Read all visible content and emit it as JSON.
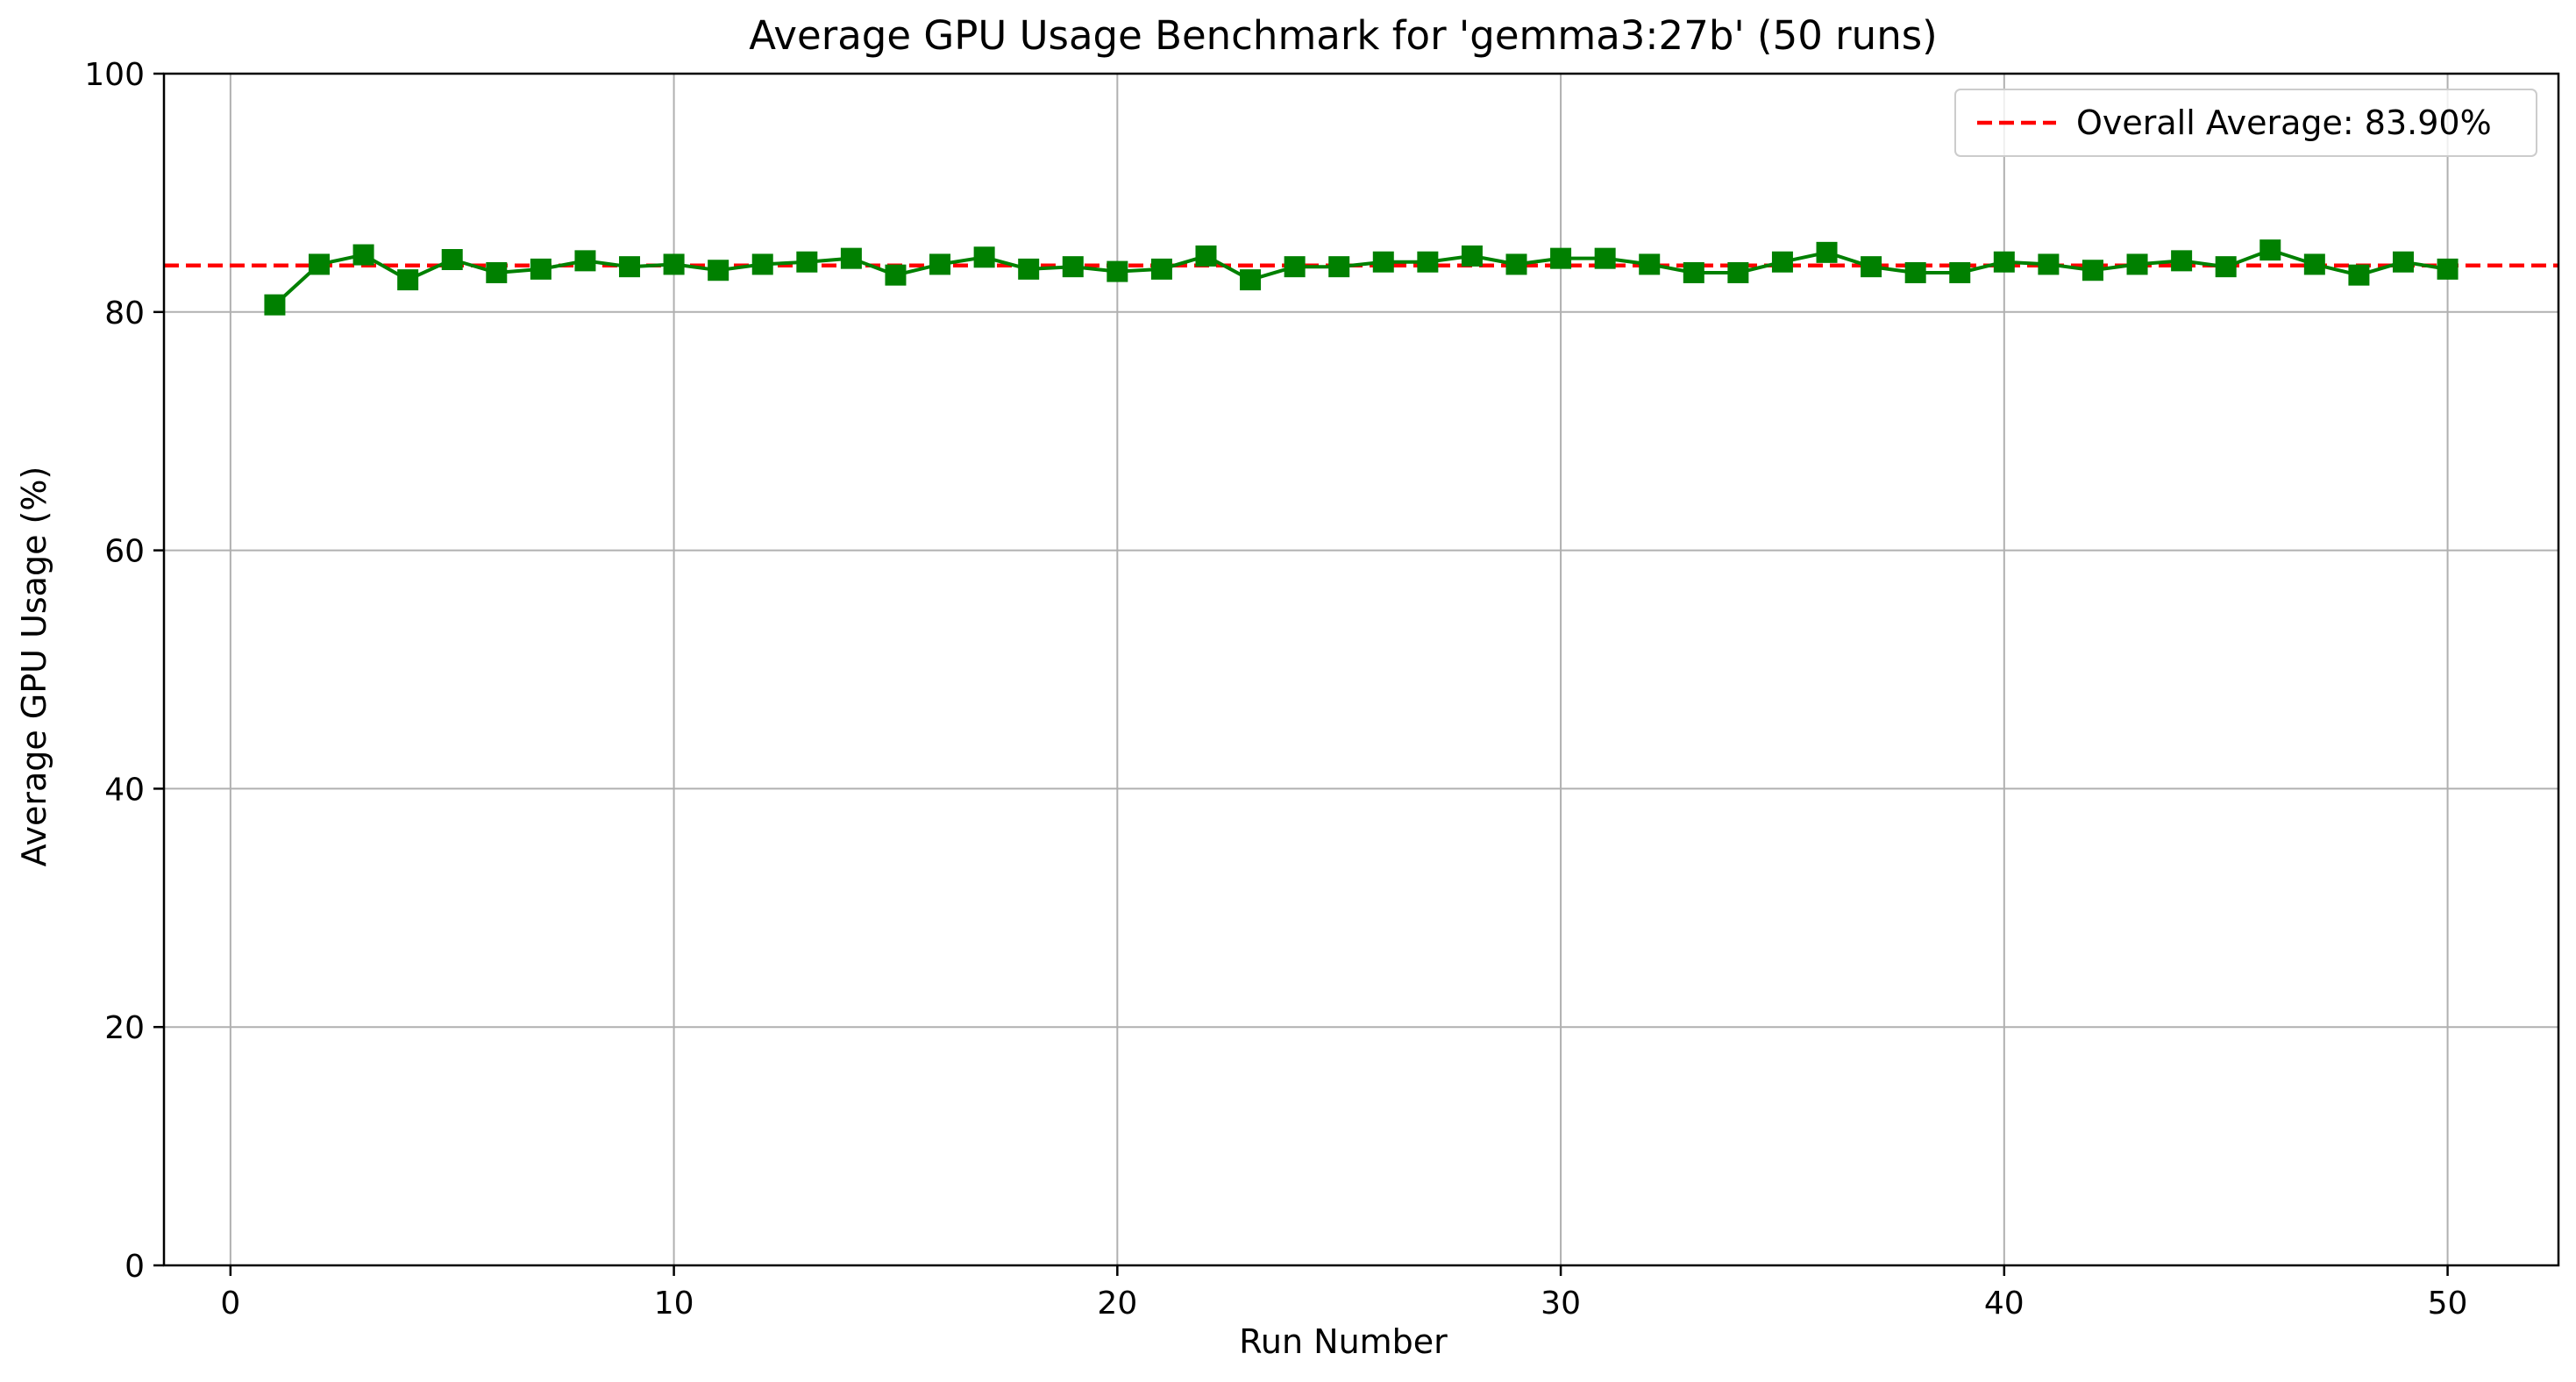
{
  "chart_data": {
    "type": "line",
    "title": "Average GPU Usage Benchmark for 'gemma3:27b' (50 runs)",
    "xlabel": "Run Number",
    "ylabel": "Average GPU Usage (%)",
    "xlim": [
      -1.5,
      52.5
    ],
    "ylim": [
      0,
      100
    ],
    "xticks": [
      0,
      10,
      20,
      30,
      40,
      50
    ],
    "yticks": [
      0,
      20,
      40,
      60,
      80,
      100
    ],
    "grid": true,
    "legend_position": "top-right",
    "series": [
      {
        "color": "#008000",
        "marker": "square",
        "x": [
          1,
          2,
          3,
          4,
          5,
          6,
          7,
          8,
          9,
          10,
          11,
          12,
          13,
          14,
          15,
          16,
          17,
          18,
          19,
          20,
          21,
          22,
          23,
          24,
          25,
          26,
          27,
          28,
          29,
          30,
          31,
          32,
          33,
          34,
          35,
          36,
          37,
          38,
          39,
          40,
          41,
          42,
          43,
          44,
          45,
          46,
          47,
          48,
          49,
          50
        ],
        "y": [
          80.6,
          84.0,
          84.8,
          82.7,
          84.4,
          83.3,
          83.6,
          84.3,
          83.8,
          84.0,
          83.5,
          84.0,
          84.2,
          84.5,
          83.1,
          84.0,
          84.6,
          83.6,
          83.8,
          83.4,
          83.6,
          84.7,
          82.7,
          83.8,
          83.8,
          84.2,
          84.2,
          84.7,
          84.0,
          84.5,
          84.5,
          84.0,
          83.3,
          83.3,
          84.2,
          85.0,
          83.8,
          83.3,
          83.3,
          84.2,
          84.0,
          83.5,
          84.0,
          84.3,
          83.8,
          85.2,
          84.0,
          83.1,
          84.2,
          83.6
        ]
      }
    ],
    "reference_line": {
      "y": 83.9,
      "color": "#ff0000",
      "style": "dashed",
      "label": "Overall Average: 83.90%"
    }
  }
}
